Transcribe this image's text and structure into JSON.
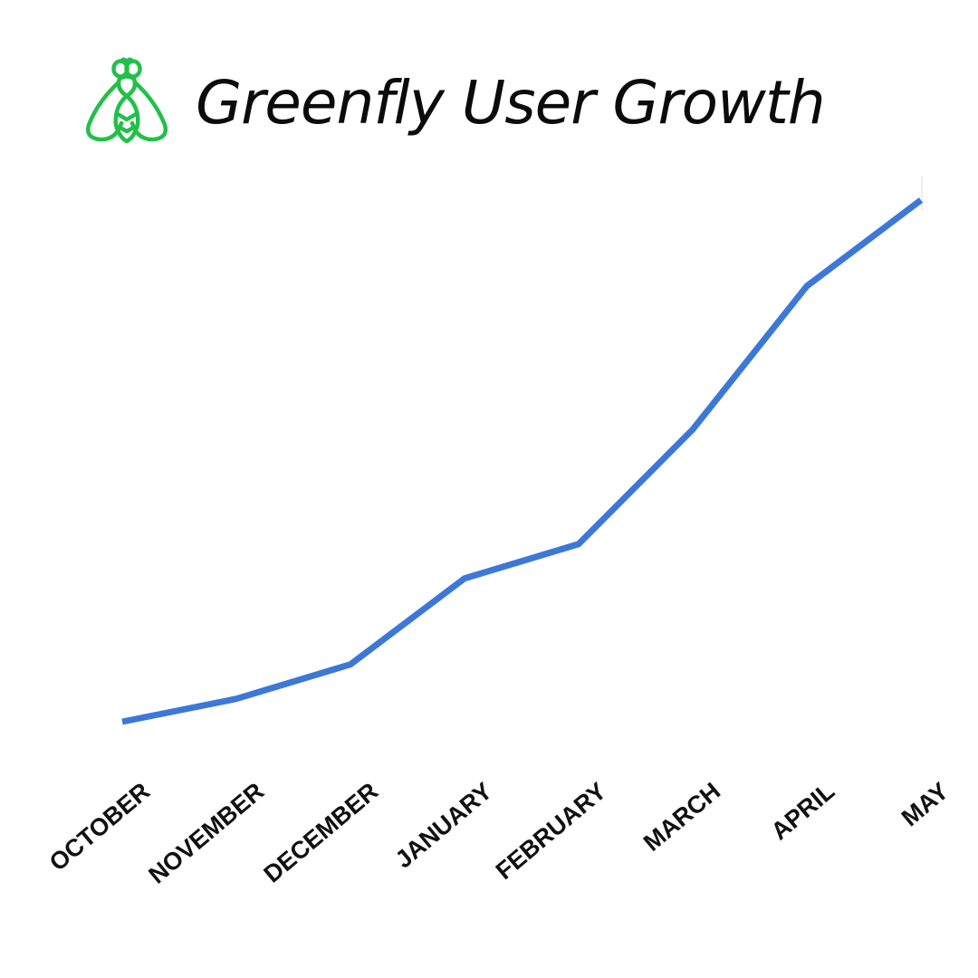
{
  "title": "Greenfly User Growth",
  "logo": {
    "icon": "fly-icon",
    "color": "#22c04a"
  },
  "chart_data": {
    "type": "line",
    "title": "Greenfly User Growth",
    "xlabel": "",
    "ylabel": "",
    "categories": [
      "OCTOBER",
      "NOVEMBER",
      "DECEMBER",
      "JANUARY",
      "FEBRUARY",
      "MARCH",
      "APRIL",
      "MAY"
    ],
    "series": [
      {
        "color": "#3c78d8",
        "values": [
          0,
          4,
          10,
          25,
          31,
          51,
          76,
          91
        ]
      }
    ],
    "ylim": [
      0,
      100
    ],
    "grid": false,
    "legend": "none",
    "y_axis_labels": false
  }
}
